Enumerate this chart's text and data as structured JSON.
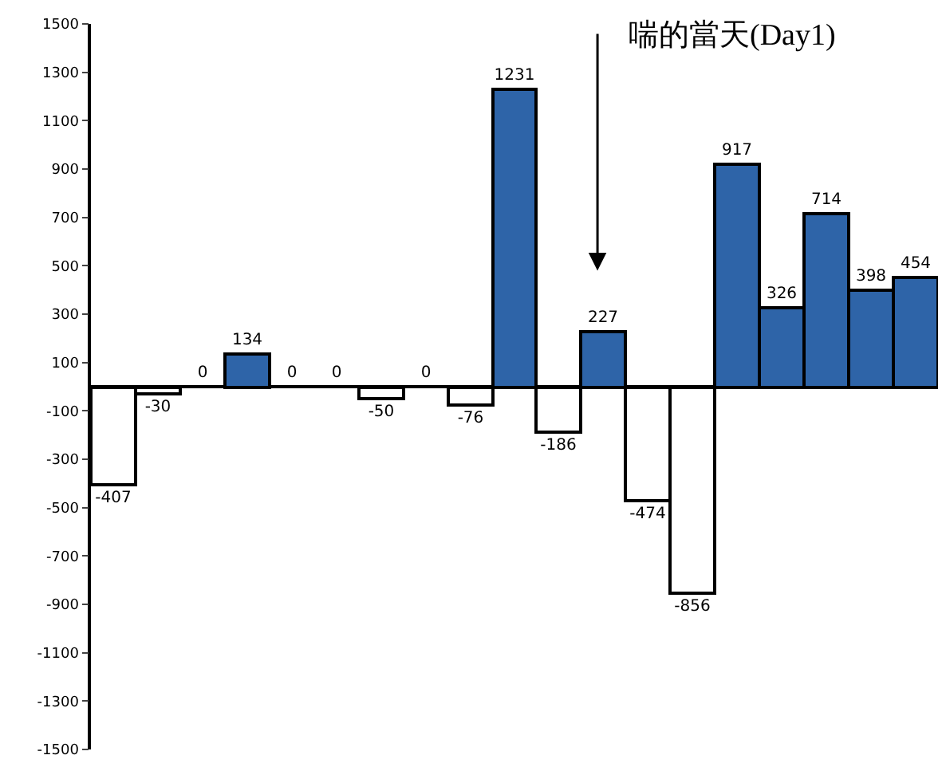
{
  "chart_data": {
    "type": "bar",
    "categories": [
      null,
      null,
      null,
      null,
      null,
      null,
      null,
      null,
      null,
      null,
      null,
      null,
      null,
      null,
      null,
      null,
      null,
      null,
      null
    ],
    "values": [
      -407,
      -30,
      0,
      134,
      0,
      0,
      -50,
      0,
      -76,
      1231,
      -186,
      227,
      -474,
      -856,
      917,
      326,
      714,
      398,
      454
    ],
    "colors": [
      "#ffffff",
      "#ffffff",
      "#ffffff",
      "#2e64a8",
      "#ffffff",
      "#ffffff",
      "#ffffff",
      "#ffffff",
      "#ffffff",
      "#2e64a8",
      "#ffffff",
      "#2e64a8",
      "#ffffff",
      "#ffffff",
      "#2e64a8",
      "#2e64a8",
      "#2e64a8",
      "#2e64a8",
      "#2e64a8"
    ],
    "data_labels": true,
    "ylim": [
      -1500,
      1500
    ],
    "yticks": [
      -1500,
      -1300,
      -1100,
      -900,
      -700,
      -500,
      -300,
      -100,
      100,
      300,
      500,
      700,
      900,
      1100,
      1300,
      1500
    ],
    "annotations": [
      "喘的當天(Day1)"
    ],
    "tick_labels": "y"
  }
}
